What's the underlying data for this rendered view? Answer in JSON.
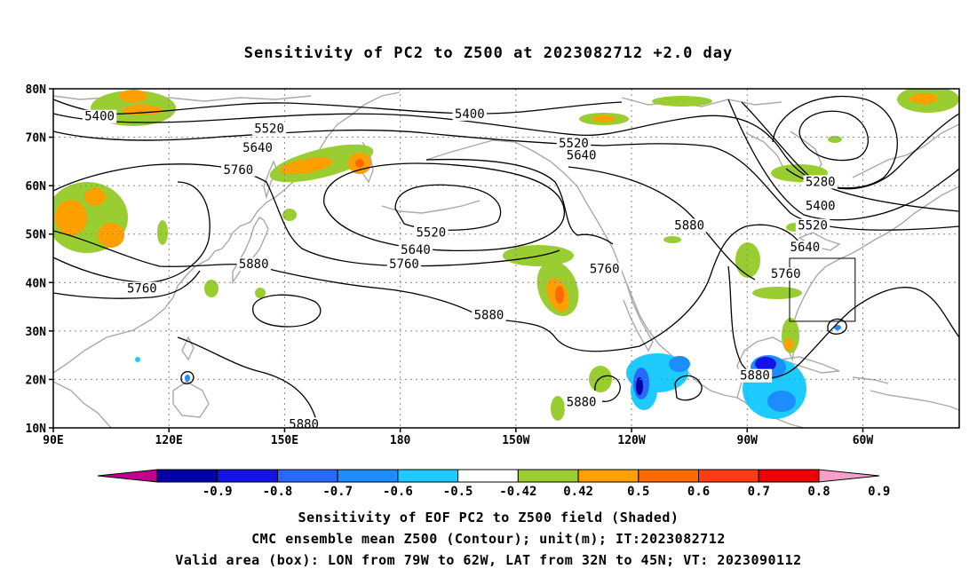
{
  "title": "Sensitivity of PC2 to Z500 at 2023082712 +2.0 day",
  "lat_labels": [
    "80N",
    "70N",
    "60N",
    "50N",
    "40N",
    "30N",
    "20N",
    "10N"
  ],
  "lon_labels": [
    "90E",
    "120E",
    "150E",
    "180",
    "150W",
    "120W",
    "90W",
    "60W"
  ],
  "contour_labels": [
    {
      "text": "5400",
      "lon": 102,
      "lat": 74
    },
    {
      "text": "5520",
      "lon": 146,
      "lat": 71.5
    },
    {
      "text": "5400",
      "lon": -162,
      "lat": 74.5
    },
    {
      "text": "5640",
      "lon": 143,
      "lat": 67.5
    },
    {
      "text": "5520",
      "lon": -135,
      "lat": 68.5
    },
    {
      "text": "5640",
      "lon": -133,
      "lat": 66
    },
    {
      "text": "5760",
      "lon": 138,
      "lat": 63
    },
    {
      "text": "5520",
      "lon": -172,
      "lat": 50
    },
    {
      "text": "5640",
      "lon": -176,
      "lat": 46.5
    },
    {
      "text": "5760",
      "lon": -179,
      "lat": 43.5
    },
    {
      "text": "5880",
      "lon": 142,
      "lat": 43.5
    },
    {
      "text": "5760",
      "lon": 113,
      "lat": 38.5
    },
    {
      "text": "5880",
      "lon": -157,
      "lat": 33
    },
    {
      "text": "5760",
      "lon": -127,
      "lat": 42.5
    },
    {
      "text": "5880",
      "lon": -105,
      "lat": 51.5
    },
    {
      "text": "5280",
      "lon": -71,
      "lat": 60.5
    },
    {
      "text": "5400",
      "lon": -71,
      "lat": 55.5
    },
    {
      "text": "5520",
      "lon": -73,
      "lat": 51.5
    },
    {
      "text": "5640",
      "lon": -75,
      "lat": 47
    },
    {
      "text": "5760",
      "lon": -80,
      "lat": 41.5
    },
    {
      "text": "5880",
      "lon": -88,
      "lat": 20.5
    },
    {
      "text": "5880",
      "lon": -133,
      "lat": 15
    },
    {
      "text": "5880",
      "lon": 155,
      "lat": 10.5
    }
  ],
  "colorbar": {
    "labels": [
      "-0.9",
      "-0.8",
      "-0.7",
      "-0.6",
      "-0.5",
      "-0.42",
      "0.42",
      "0.5",
      "0.6",
      "0.7",
      "0.8",
      "0.9"
    ],
    "colors": [
      "#0000a8",
      "#1414e6",
      "#2868ff",
      "#1c8cff",
      "#1ecbff",
      "#ffffff",
      "#9acd32",
      "#ff9f00",
      "#ff6a00",
      "#ff3c14",
      "#f00000"
    ],
    "low_color": "#c0008c",
    "high_color": "#f4a0c8"
  },
  "box": {
    "lon_min": -79,
    "lon_max": -62,
    "lat_min": 32,
    "lat_max": 45
  },
  "captions": [
    "Sensitivity of EOF PC2 to Z500 field (Shaded)",
    "CMC ensemble mean Z500 (Contour); unit(m); IT:2023082712",
    "Valid area (box): LON from 79W to 62W, LAT from 32N to 45N; VT: 2023090112"
  ]
}
